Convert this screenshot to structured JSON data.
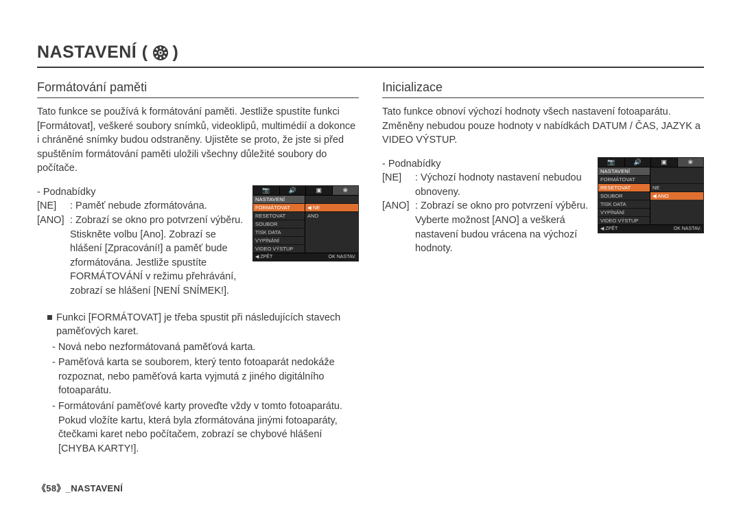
{
  "page": {
    "title_text": "NASTAVENÍ (",
    "title_close": ")",
    "footer": "《58》_NASTAVENÍ"
  },
  "colors": {
    "text": "#3a3a3a",
    "menu_highlight": "#e07030",
    "menu_bg": "#2a2a2a",
    "menu_dark": "#1a1a1a"
  },
  "left": {
    "heading": "Formátování paměti",
    "intro": "Tato funkce se používá k formátování paměti. Jestliže spustíte funkci [Formátovat], veškeré soubory snímků, videoklipů, multimédií a dokonce i chráněné snímky budou odstraněny. Ujistěte se proto, že jste si před spuštěním formátování paměti uložili všechny důležité soubory do počítače.",
    "sub_label": "- Podnabídky",
    "opt_ne_key": "[NE]",
    "opt_ne_val": ": Paměť nebude zformátována.",
    "opt_ano_key": "[ANO]",
    "opt_ano_val": ": Zobrazí se okno pro potvrzení výběru. Stiskněte volbu [Ano]. Zobrazí se hlášení [Zpracování!] a paměť bude zformátována. Jestliže spustíte FORMÁTOVÁNÍ v režimu přehrávání, zobrazí se hlášení [NENÍ SNÍMEK!].",
    "note_lead": "Funkci [FORMÁTOVAT] je třeba spustit při následujících stavech paměťových karet.",
    "note_items": [
      "- Nová nebo nezformátovaná paměťová karta.",
      "- Paměťová karta se souborem, který tento fotoaparát nedokáže rozpoznat, nebo paměťová karta vyjmutá z jiného digitálního fotoaparátu.",
      "- Formátování paměťové karty proveďte vždy v tomto fotoaparátu. Pokud vložíte kartu, která byla zformátována jinými fotoaparáty, čtečkami karet nebo počítačem, zobrazí se chybové hlášení [CHYBA KARTY!]."
    ],
    "menu": {
      "tabs": [
        "📷",
        "🔊",
        "▣",
        "❀"
      ],
      "active_tab": 3,
      "title": "NASTAVENÍ",
      "left_items": [
        "FORMÁTOVAT",
        "RESETOVAT",
        "SOUBOR",
        "TISK DATA",
        "VYPÍNÁNÍ",
        "VIDEO VÝSTUP"
      ],
      "left_selected": 0,
      "right_items": [
        "NE",
        "ANO"
      ],
      "right_selected": 0,
      "footer_back": "◀ ZPĚT",
      "footer_ok": "OK  NASTAV."
    }
  },
  "right": {
    "heading": "Inicializace",
    "intro": "Tato funkce obnoví výchozí hodnoty všech nastavení fotoaparátu. Změněny nebudou pouze hodnoty v nabídkách DATUM / ČAS, JAZYK a VIDEO VÝSTUP.",
    "sub_label": "- Podnabídky",
    "opt_ne_key": "[NE]",
    "opt_ne_val": ": Výchozí hodnoty nastavení nebudou obnoveny.",
    "opt_ano_key": "[ANO]",
    "opt_ano_val": ": Zobrazí se okno pro potvrzení výběru. Vyberte možnost [ANO] a veškerá nastavení budou vrácena na výchozí hodnoty.",
    "menu": {
      "tabs": [
        "📷",
        "🔊",
        "▣",
        "❀"
      ],
      "active_tab": 3,
      "title": "NASTAVENÍ",
      "left_items": [
        "FORMÁTOVAT",
        "RESETOVAT",
        "SOUBOR",
        "TISK DATA",
        "VYPÍNÁNÍ",
        "VIDEO VÝSTUP"
      ],
      "left_selected": 1,
      "right_items": [
        "NE",
        "ANO"
      ],
      "right_selected": 1,
      "footer_back": "◀ ZPĚT",
      "footer_ok": "OK  NASTAV."
    }
  }
}
